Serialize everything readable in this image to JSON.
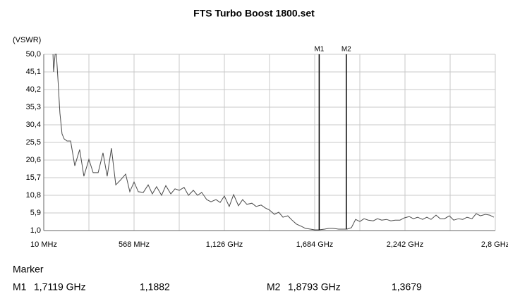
{
  "chart_data": {
    "type": "line",
    "title": "FTS Turbo Boost 1800.set",
    "y_label": "(VSWR)",
    "xlim": [
      10,
      2800
    ],
    "ylim": [
      1.0,
      50.0
    ],
    "grid": true,
    "xticks": [
      {
        "value": 10,
        "label": "10 MHz"
      },
      {
        "value": 289,
        "label": null
      },
      {
        "value": 568,
        "label": "568 MHz"
      },
      {
        "value": 847,
        "label": null
      },
      {
        "value": 1126,
        "label": "1,126 GHz"
      },
      {
        "value": 1405,
        "label": null
      },
      {
        "value": 1684,
        "label": "1,684 GHz"
      },
      {
        "value": 1963,
        "label": null
      },
      {
        "value": 2242,
        "label": "2,242 GHz"
      },
      {
        "value": 2521,
        "label": null
      },
      {
        "value": 2800,
        "label": "2,8 GHz"
      }
    ],
    "yticks": [
      {
        "value": 1.0,
        "label": "1,0"
      },
      {
        "value": 5.9,
        "label": "5,9"
      },
      {
        "value": 10.8,
        "label": "10,8"
      },
      {
        "value": 15.7,
        "label": "15,7"
      },
      {
        "value": 20.6,
        "label": "20,6"
      },
      {
        "value": 25.5,
        "label": "25,5"
      },
      {
        "value": 30.4,
        "label": "30,4"
      },
      {
        "value": 35.3,
        "label": "35,3"
      },
      {
        "value": 40.2,
        "label": "40,2"
      },
      {
        "value": 45.1,
        "label": "45,1"
      },
      {
        "value": 50.0,
        "label": "50,0"
      }
    ],
    "color": "#4a4a4a",
    "x": [
      67,
      71,
      80,
      88,
      97,
      110,
      123,
      136,
      154,
      176,
      202,
      232,
      258,
      289,
      315,
      346,
      376,
      402,
      428,
      455,
      485,
      516,
      542,
      568,
      594,
      625,
      655,
      681,
      707,
      738,
      764,
      795,
      821,
      847,
      877,
      904,
      934,
      960,
      986,
      1017,
      1043,
      1074,
      1100,
      1126,
      1156,
      1183,
      1213,
      1239,
      1265,
      1296,
      1322,
      1353,
      1379,
      1405,
      1435,
      1462,
      1488,
      1518,
      1544,
      1571,
      1601,
      1627,
      1658,
      1684,
      1710,
      1745,
      1771,
      1797,
      1832,
      1858,
      1884,
      1911,
      1937,
      1963,
      1989,
      2015,
      2046,
      2072,
      2098,
      2128,
      2155,
      2181,
      2211,
      2237,
      2268,
      2294,
      2320,
      2351,
      2377,
      2403,
      2434,
      2460,
      2486,
      2516,
      2543,
      2573,
      2599,
      2625,
      2656,
      2682,
      2708,
      2739,
      2765,
      2791
    ],
    "values": [
      50.0,
      45.1,
      50.0,
      50.0,
      43.5,
      33.7,
      27.9,
      26.5,
      25.9,
      25.9,
      19.0,
      23.5,
      16.1,
      20.8,
      17.1,
      17.1,
      22.6,
      16.1,
      23.9,
      13.7,
      15.1,
      16.7,
      11.8,
      14.5,
      11.8,
      11.6,
      13.7,
      11.2,
      13.2,
      10.8,
      13.5,
      11.2,
      12.6,
      12.2,
      13.0,
      10.8,
      12.2,
      10.8,
      11.6,
      9.6,
      9.0,
      9.6,
      8.8,
      10.6,
      7.7,
      11.0,
      7.9,
      9.6,
      8.3,
      8.6,
      7.7,
      8.1,
      7.3,
      6.7,
      5.5,
      6.1,
      4.7,
      5.1,
      3.9,
      2.8,
      2.2,
      1.6,
      1.4,
      1.2,
      1.2,
      1.4,
      1.6,
      1.6,
      1.4,
      1.4,
      1.4,
      1.8,
      4.1,
      3.5,
      4.3,
      3.9,
      3.7,
      4.3,
      3.9,
      4.1,
      3.7,
      3.9,
      3.9,
      4.5,
      4.9,
      4.3,
      4.7,
      4.1,
      4.7,
      4.1,
      5.3,
      4.3,
      4.3,
      5.1,
      3.9,
      4.3,
      4.1,
      4.7,
      4.3,
      5.7,
      5.1,
      5.5,
      5.3,
      4.7
    ],
    "marker_heading": "Marker",
    "markers": [
      {
        "name": "M1",
        "x": 1711.9,
        "x_label": "1,7119 GHz",
        "y": 1.1882,
        "y_label": "1,1882"
      },
      {
        "name": "M2",
        "x": 1879.3,
        "x_label": "1,8793 GHz",
        "y": 1.3679,
        "y_label": "1,3679"
      }
    ]
  }
}
